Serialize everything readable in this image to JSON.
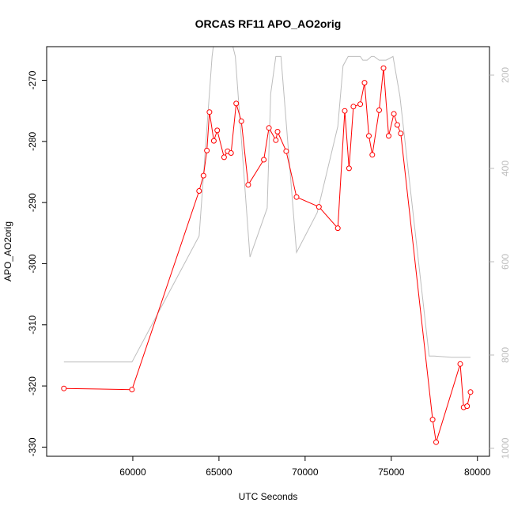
{
  "chart_data": {
    "type": "line",
    "title": "ORCAS RF11 APO_AO2orig",
    "xlabel": "UTC Seconds",
    "ylabel": "APO_AO2orig",
    "xlim": [
      55000,
      80700
    ],
    "ylim": [
      -331.5,
      -264.5
    ],
    "x_ticks": [
      60000,
      65000,
      70000,
      75000,
      80000
    ],
    "x_tick_labels": [
      "60000",
      "65000",
      "70000",
      "75000",
      "80000"
    ],
    "y_ticks": [
      -330,
      -320,
      -310,
      -300,
      -290,
      -280,
      -270
    ],
    "y_tick_labels": [
      "-330",
      "-320",
      "-310",
      "-300",
      "-290",
      "-280",
      "-270"
    ],
    "y2lim": [
      1017,
      139
    ],
    "y2_ticks": [
      200,
      400,
      600,
      800,
      1000
    ],
    "y2_tick_labels": [
      "200",
      "400",
      "600",
      "800",
      "1000"
    ],
    "grid": false,
    "colors": {
      "primary": "#ff0000",
      "secondary": "#bdbdbd",
      "axis": "#000000"
    },
    "series": [
      {
        "color": "#ff0000",
        "marker": "open-circle",
        "axis": "left",
        "x": [
          56000,
          59950,
          63850,
          64100,
          64300,
          64450,
          64700,
          64900,
          65300,
          65500,
          65700,
          66000,
          66300,
          66700,
          67600,
          67900,
          68300,
          68400,
          68900,
          69500,
          70800,
          71900,
          72300,
          72550,
          72800,
          73200,
          73450,
          73700,
          73900,
          74300,
          74550,
          74850,
          75150,
          75350,
          75550,
          77400,
          77600,
          79000,
          79200,
          79400,
          79600
        ],
        "y": [
          -320.4,
          -320.6,
          -288.1,
          -285.6,
          -281.5,
          -275.2,
          -279.9,
          -278.2,
          -282.6,
          -281.6,
          -281.9,
          -273.8,
          -276.7,
          -287.1,
          -283.0,
          -277.8,
          -279.8,
          -278.4,
          -281.6,
          -289.1,
          -290.7,
          -294.2,
          -275.0,
          -284.4,
          -274.3,
          -273.9,
          -270.4,
          -279.1,
          -282.2,
          -274.9,
          -268.0,
          -279.1,
          -275.5,
          -277.3,
          -278.7,
          -325.5,
          -329.2,
          -316.4,
          -323.5,
          -323.3,
          -321.0
        ]
      },
      {
        "color": "#bdbdbd",
        "marker": "none",
        "axis": "right",
        "x": [
          56000,
          59950,
          63850,
          64600,
          65000,
          65150,
          65950,
          66800,
          67800,
          68000,
          68300,
          68600,
          69500,
          70700,
          71900,
          72200,
          72500,
          73200,
          73350,
          73600,
          73850,
          74000,
          74300,
          74700,
          75100,
          75500,
          77200,
          77500,
          78500,
          79600
        ],
        "y": [
          815,
          815,
          545,
          160,
          40,
          40,
          160,
          590,
          485,
          240,
          160,
          160,
          580,
          495,
          310,
          180,
          160,
          160,
          168,
          168,
          160,
          160,
          168,
          168,
          160,
          245,
          802,
          802,
          805,
          805
        ]
      }
    ]
  }
}
